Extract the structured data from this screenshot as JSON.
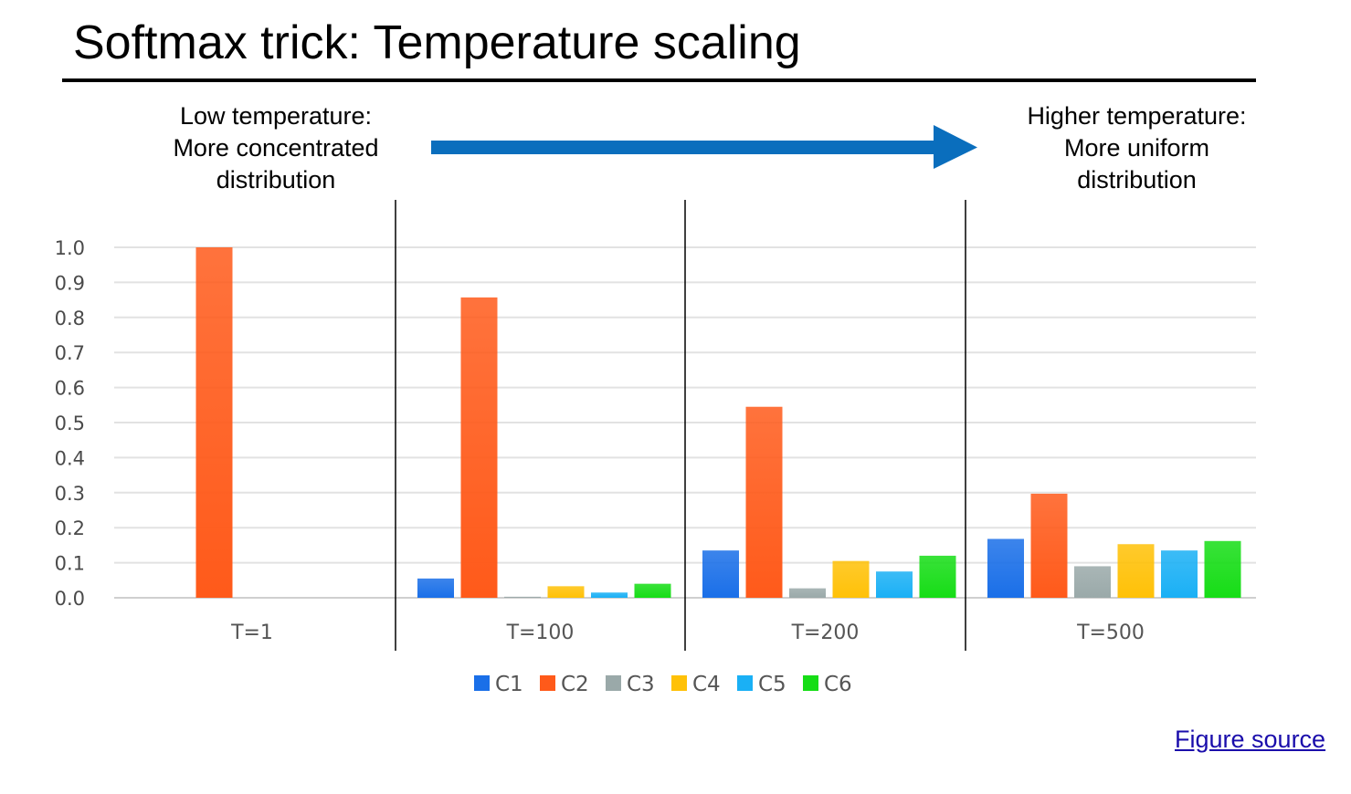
{
  "slide": {
    "title": "Softmax trick: Temperature scaling",
    "low_caption": [
      "Low temperature:",
      "More concentrated",
      "distribution"
    ],
    "high_caption": [
      "Higher temperature:",
      "More uniform",
      "distribution"
    ],
    "figure_source": "Figure source",
    "arrow_color": "#0a6ebd"
  },
  "chart_data": {
    "type": "bar",
    "categories": [
      "T=1",
      "T=100",
      "T=200",
      "T=500"
    ],
    "ylim": [
      0,
      1.0
    ],
    "yticks": [
      "0.0",
      "0.1",
      "0.2",
      "0.3",
      "0.4",
      "0.5",
      "0.6",
      "0.7",
      "0.8",
      "0.9",
      "1.0"
    ],
    "grid": true,
    "legend_position": "bottom",
    "series": [
      {
        "name": "C1",
        "color": "#1a6fe8",
        "values": [
          0.0,
          0.055,
          0.135,
          0.168
        ]
      },
      {
        "name": "C2",
        "color": "#ff5a1a",
        "values": [
          1.0,
          0.857,
          0.545,
          0.297
        ]
      },
      {
        "name": "C3",
        "color": "#9aa9a9",
        "values": [
          0.0,
          0.003,
          0.027,
          0.09
        ]
      },
      {
        "name": "C4",
        "color": "#ffc107",
        "values": [
          0.0,
          0.033,
          0.105,
          0.153
        ]
      },
      {
        "name": "C5",
        "color": "#1ab0f5",
        "values": [
          0.0,
          0.015,
          0.075,
          0.135
        ]
      },
      {
        "name": "C6",
        "color": "#16dd16",
        "values": [
          0.0,
          0.04,
          0.12,
          0.162
        ]
      }
    ]
  }
}
